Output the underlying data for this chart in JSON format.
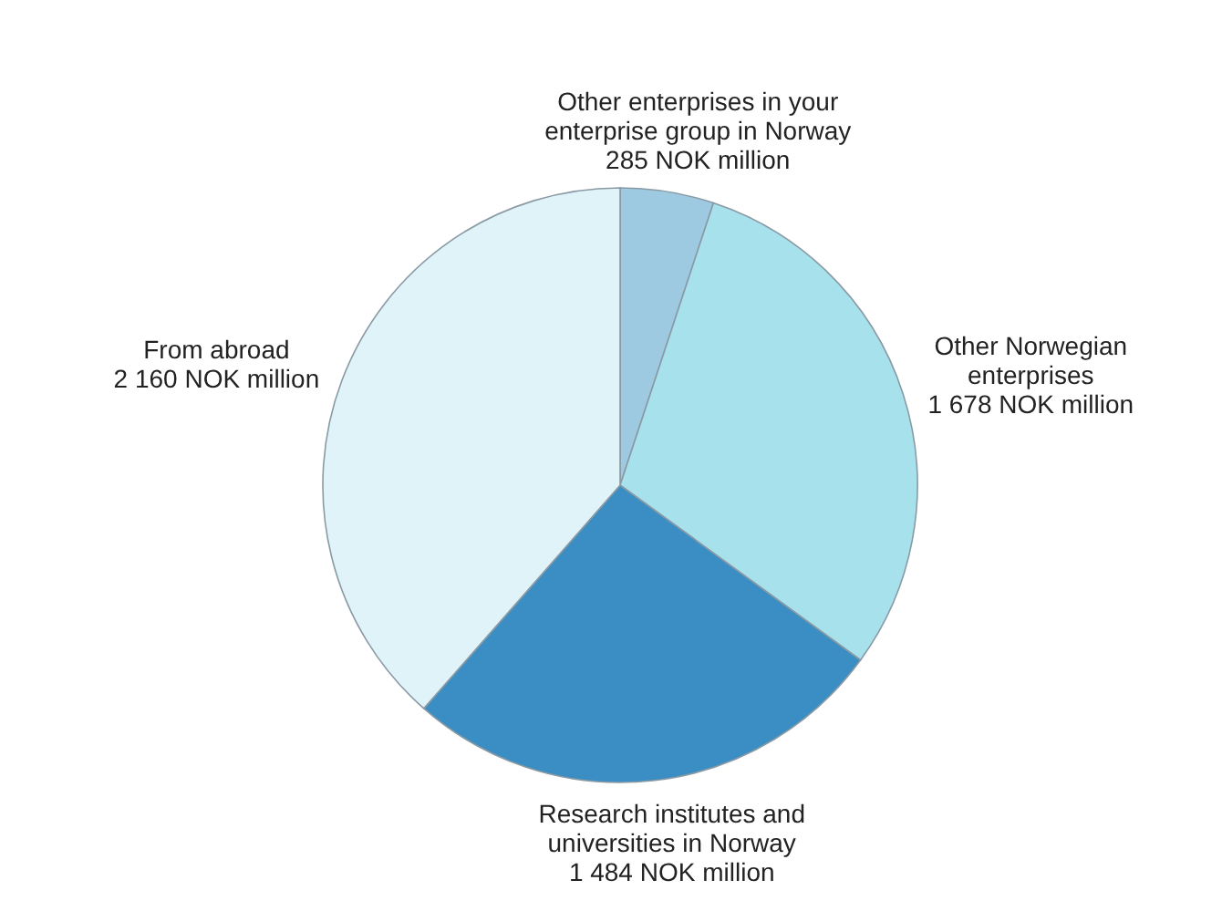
{
  "chart_data": {
    "type": "pie",
    "categories": [
      "Other enterprises in your enterprise group in Norway",
      "Other Norwegian enterprises",
      "Research institutes and universities in Norway",
      "From abroad"
    ],
    "values": [
      285,
      1678,
      1484,
      2160
    ],
    "value_labels": [
      "285 NOK million",
      "1 678 NOK million",
      "1 484 NOK million",
      "2 160 NOK million"
    ],
    "colors": [
      "#9ecae1",
      "#a6e1ec",
      "#3a8ec4",
      "#dff3f8"
    ]
  }
}
